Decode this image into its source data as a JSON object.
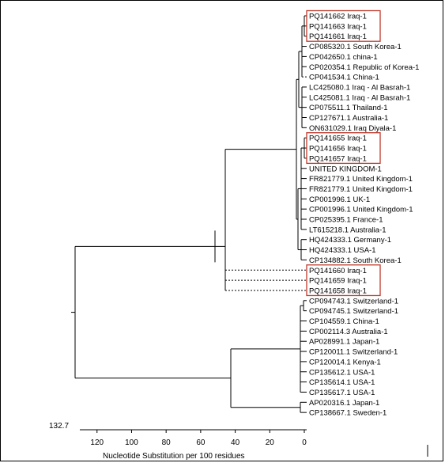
{
  "root_distance": "132.7",
  "axis": {
    "label": "Nucleotide Substitution per 100 residues",
    "ticks": [
      "120",
      "100",
      "80",
      "60",
      "40",
      "20",
      "0"
    ]
  },
  "colors": {
    "line": "#000000",
    "highlight_box": "#c0392b"
  },
  "leaves": [
    "PQ141662 Iraq-1",
    "PQ141663 Iraq-1",
    "PQ141661 Iraq-1",
    "CP085320.1 South Korea-1",
    "CP042650.1 china-1",
    "CP020354.1 Republic of Korea-1",
    "CP041534.1 China-1",
    "LC425080.1 Iraq - Al Basrah-1",
    "LC425081.1 Iraq - Al Basrah-1",
    "CP075511.1 Thailand-1",
    "CP127671.1 Australia-1",
    "ON631029.1 Iraq Diyala-1",
    "PQ141655 Iraq-1",
    "PQ141656 Iraq-1",
    "PQ141657 Iraq-1",
    "UNITED KINGDOM-1",
    "FR821779.1 United Kingdom-1",
    "FR821779.1 United Kingdom-1",
    "CP001996.1 UK-1",
    "CP001996.1 United Kingdom-1",
    "CP025395.1 France-1",
    "LT615218.1 Australia-1",
    "HQ424333.1 Germany-1",
    "HQ424333.1 USA-1",
    "CP134882.1 South Korea-1",
    "PQ141660 Iraq-1",
    "PQ141659 Iraq-1",
    "PQ141658 Iraq-1",
    "CP094743.1 Switzerland-1",
    "CP094745.1 Switzerland-1",
    "CP104559.1 China-1",
    "CP002114.3 Australia-1",
    "AP028991.1 Japan-1",
    "CP120011.1 Switzerland-1",
    "CP120014.1 Kenya-1",
    "CP135612.1 USA-1",
    "CP135614.1 USA-1",
    "CP135617.1 USA-1",
    "AP020316.1 Japan-1",
    "CP138667.1 Sweden-1"
  ]
}
